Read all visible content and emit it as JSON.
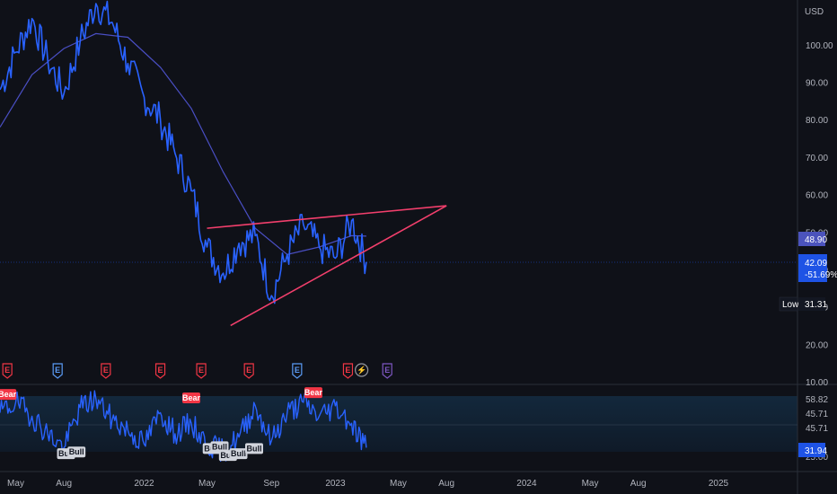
{
  "currency": "USD",
  "colors": {
    "background": "#0f1118",
    "price_line": "#2962ff",
    "ma_line": "#4a4fc4",
    "trend_line": "#f23f6c",
    "oscillator_line": "#2962ff",
    "last_price_tag": "#1e53e5",
    "ma_tag": "#4b53bc",
    "bear_signal": "#f23645",
    "bull_signal": "#d1d4dc"
  },
  "chart_data": [
    {
      "type": "line",
      "name": "price-panel",
      "x_ticks": [
        "May",
        "Aug",
        "2022",
        "May",
        "Sep",
        "2023",
        "May",
        "Aug",
        "2024",
        "May",
        "Aug",
        "2025"
      ],
      "y_ticks": [
        "100.00",
        "90.00",
        "80.00",
        "70.00",
        "60.00",
        "50.00",
        "40.00",
        "30.00",
        "20.00",
        "10.00"
      ],
      "ylim": [
        10,
        110
      ],
      "series": [
        {
          "role": "price",
          "x": [
            "2021-04-01",
            "2021-05-01",
            "2021-06-01",
            "2021-07-01",
            "2021-08-01",
            "2021-09-01",
            "2021-10-01",
            "2021-11-01",
            "2021-12-01",
            "2022-01-01",
            "2022-02-01",
            "2022-03-01",
            "2022-04-01",
            "2022-05-01",
            "2022-06-01",
            "2022-07-01",
            "2022-08-01",
            "2022-09-01",
            "2022-10-01",
            "2022-11-01",
            "2022-12-01",
            "2023-01-01",
            "2023-02-01",
            "2023-03-01"
          ],
          "values": [
            88,
            98,
            107,
            96,
            87,
            101,
            111,
            106,
            95,
            86,
            80,
            71,
            61,
            46,
            39,
            47,
            49,
            33,
            44,
            52,
            46,
            43,
            53,
            42
          ]
        },
        {
          "role": "moving-average",
          "x": [
            "2021-04-01",
            "2021-06-01",
            "2021-08-01",
            "2021-10-01",
            "2021-12-01",
            "2022-02-01",
            "2022-04-01",
            "2022-06-01",
            "2022-08-01",
            "2022-10-01",
            "2022-12-01",
            "2023-02-01",
            "2023-03-01"
          ],
          "values": [
            78,
            92,
            99,
            103,
            102,
            94,
            83,
            66,
            51,
            44,
            46,
            49,
            48.9
          ]
        },
        {
          "role": "upper-trendline",
          "x": [
            "2022-05-01",
            "2023-08-01"
          ],
          "values": [
            51,
            57
          ]
        },
        {
          "role": "lower-trendline",
          "x": [
            "2022-06-15",
            "2023-08-01"
          ],
          "values": [
            25,
            57
          ]
        }
      ],
      "last_price": {
        "value": "42.09",
        "change": "-51.69%"
      },
      "ma_value": "48.90",
      "low": {
        "label": "Low",
        "value": "31.31"
      },
      "earnings_markers": [
        {
          "x": "2021-04-15",
          "label": "E",
          "kind": "miss"
        },
        {
          "x": "2021-07-20",
          "label": "E",
          "kind": "beat"
        },
        {
          "x": "2021-10-20",
          "label": "E",
          "kind": "miss"
        },
        {
          "x": "2022-02-01",
          "label": "E",
          "kind": "miss"
        },
        {
          "x": "2022-04-20",
          "label": "E",
          "kind": "miss"
        },
        {
          "x": "2022-07-20",
          "label": "E",
          "kind": "miss"
        },
        {
          "x": "2022-10-20",
          "label": "E",
          "kind": "beat"
        },
        {
          "x": "2023-01-25",
          "label": "E",
          "kind": "miss"
        },
        {
          "x": "2023-02-20",
          "label": "⚡",
          "kind": "flash"
        },
        {
          "x": "2023-04-10",
          "label": "E",
          "kind": "upcoming"
        }
      ]
    },
    {
      "type": "line",
      "name": "oscillator-panel",
      "y_ticks": [
        "58.82",
        "45.71",
        "45.71",
        "25.00"
      ],
      "top_tick": "58.82",
      "current_value": "31.94",
      "series": [
        {
          "role": "oscillator",
          "x": [
            "2021-04-01",
            "2021-05-01",
            "2021-06-01",
            "2021-07-01",
            "2021-08-01",
            "2021-09-01",
            "2021-10-01",
            "2021-11-01",
            "2021-12-01",
            "2022-01-01",
            "2022-02-01",
            "2022-03-01",
            "2022-04-01",
            "2022-05-01",
            "2022-06-01",
            "2022-07-01",
            "2022-08-01",
            "2022-09-01",
            "2022-10-01",
            "2022-11-01",
            "2022-12-01",
            "2023-01-01",
            "2023-02-01",
            "2023-03-01"
          ],
          "values": [
            52,
            58,
            50,
            40,
            32,
            55,
            60,
            48,
            42,
            34,
            52,
            40,
            46,
            34,
            30,
            38,
            56,
            36,
            52,
            58,
            50,
            56,
            46,
            32
          ]
        }
      ],
      "signals": [
        {
          "x": "2021-04-15",
          "label": "Bear",
          "kind": "bear",
          "at": 62
        },
        {
          "x": "2021-08-05",
          "label": "Bull",
          "kind": "bull",
          "at": 28
        },
        {
          "x": "2021-08-25",
          "label": "Bull",
          "kind": "bull",
          "at": 29
        },
        {
          "x": "2022-04-01",
          "label": "Bear",
          "kind": "bear",
          "at": 60
        },
        {
          "x": "2022-05-10",
          "label": "Bull",
          "kind": "bull",
          "at": 31
        },
        {
          "x": "2022-05-25",
          "label": "Bull",
          "kind": "bull",
          "at": 32
        },
        {
          "x": "2022-06-10",
          "label": "Bull",
          "kind": "bull",
          "at": 27
        },
        {
          "x": "2022-06-30",
          "label": "Bull",
          "kind": "bull",
          "at": 28
        },
        {
          "x": "2022-07-30",
          "label": "Bull",
          "kind": "bull",
          "at": 31
        },
        {
          "x": "2022-11-20",
          "label": "Bear",
          "kind": "bear",
          "at": 63
        }
      ]
    }
  ]
}
